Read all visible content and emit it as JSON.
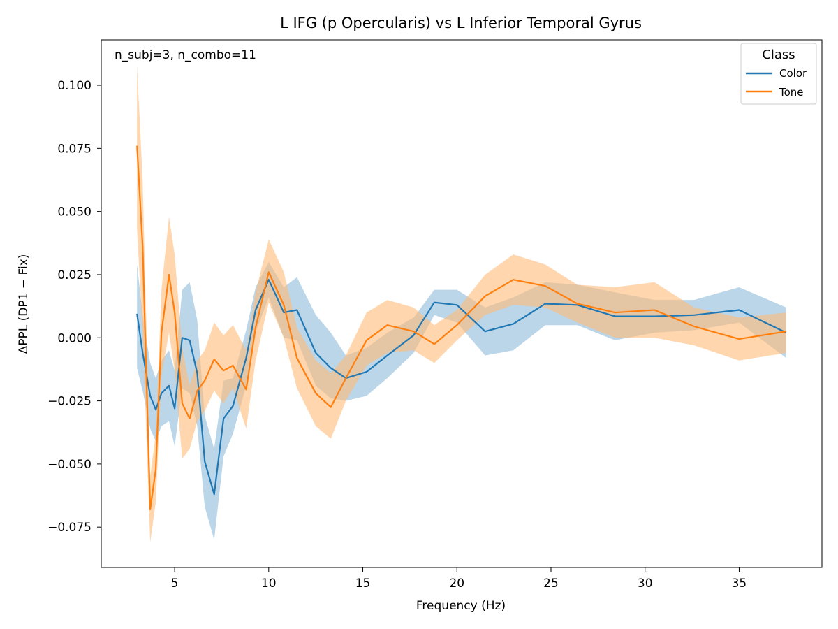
{
  "chart_data": {
    "type": "line",
    "title": "L IFG (p Opercularis) vs L Inferior Temporal Gyrus",
    "xlabel": "Frequency (Hz)",
    "ylabel": "ΔPPL (DP1 − Fix)",
    "xlim": [
      1.1,
      39.4
    ],
    "ylim": [
      -0.091,
      0.118
    ],
    "xticks": [
      5,
      10,
      15,
      20,
      25,
      30,
      35
    ],
    "xtick_labels": [
      "5",
      "10",
      "15",
      "20",
      "25",
      "30",
      "35"
    ],
    "yticks": [
      -0.075,
      -0.05,
      -0.025,
      0.0,
      0.025,
      0.05,
      0.075,
      0.1
    ],
    "ytick_labels": [
      "−0.075",
      "−0.050",
      "−0.025",
      "0.000",
      "0.025",
      "0.050",
      "0.075",
      "0.100"
    ],
    "grid": false,
    "annotation": "n_subj=3, n_combo=11",
    "legend": {
      "title": "Class",
      "position": "top-right"
    },
    "series": [
      {
        "name": "Color",
        "color": "#1f77b4",
        "fill": "#1f77b4",
        "fill_opacity": 0.3,
        "x": [
          3.0,
          3.3,
          3.7,
          4.0,
          4.3,
          4.7,
          5.0,
          5.4,
          5.8,
          6.2,
          6.6,
          7.1,
          7.6,
          8.1,
          8.8,
          9.3,
          10.0,
          10.8,
          11.5,
          12.5,
          13.3,
          14.1,
          15.2,
          16.3,
          17.7,
          18.8,
          20.0,
          21.5,
          23.0,
          24.7,
          26.4,
          28.4,
          30.5,
          32.6,
          35.0,
          37.5
        ],
        "y": [
          0.0095,
          -0.006,
          -0.023,
          -0.0285,
          -0.022,
          -0.019,
          -0.028,
          0.0,
          -0.001,
          -0.014,
          -0.049,
          -0.062,
          -0.032,
          -0.027,
          -0.008,
          0.011,
          0.023,
          0.01,
          0.011,
          -0.006,
          -0.012,
          -0.016,
          -0.0135,
          -0.007,
          0.001,
          0.014,
          0.013,
          0.0025,
          0.0055,
          0.0135,
          0.013,
          0.0085,
          0.0085,
          0.009,
          0.011,
          0.002
        ],
        "lower": [
          -0.012,
          -0.021,
          -0.036,
          -0.041,
          -0.035,
          -0.033,
          -0.043,
          -0.02,
          -0.022,
          -0.035,
          -0.067,
          -0.08,
          -0.047,
          -0.038,
          -0.019,
          0.002,
          0.016,
          0.0,
          -0.001,
          -0.019,
          -0.024,
          -0.025,
          -0.023,
          -0.016,
          -0.006,
          0.009,
          0.006,
          -0.007,
          -0.005,
          0.005,
          0.005,
          -0.001,
          0.002,
          0.003,
          0.006,
          -0.008
        ],
        "upper": [
          0.029,
          0.009,
          -0.01,
          -0.016,
          -0.009,
          -0.005,
          -0.013,
          0.019,
          0.022,
          0.007,
          -0.031,
          -0.044,
          -0.017,
          -0.016,
          0.003,
          0.02,
          0.03,
          0.02,
          0.024,
          0.009,
          0.002,
          -0.007,
          -0.004,
          0.002,
          0.008,
          0.019,
          0.019,
          0.012,
          0.016,
          0.022,
          0.021,
          0.018,
          0.015,
          0.015,
          0.02,
          0.012
        ]
      },
      {
        "name": "Tone",
        "color": "#ff7f0e",
        "fill": "#ffbb78",
        "fill_opacity": 0.6,
        "x": [
          3.0,
          3.3,
          3.7,
          4.0,
          4.3,
          4.7,
          5.0,
          5.4,
          5.8,
          6.2,
          6.6,
          7.1,
          7.6,
          8.1,
          8.8,
          9.3,
          10.0,
          10.8,
          11.5,
          12.5,
          13.3,
          14.1,
          15.2,
          16.3,
          17.7,
          18.8,
          20.0,
          21.5,
          23.0,
          24.7,
          26.4,
          28.4,
          30.5,
          32.6,
          35.0,
          37.5
        ],
        "y": [
          0.076,
          0.036,
          -0.068,
          -0.052,
          0.002,
          0.025,
          0.01,
          -0.026,
          -0.032,
          -0.021,
          -0.017,
          -0.0085,
          -0.013,
          -0.011,
          -0.0205,
          0.004,
          0.026,
          0.013,
          -0.008,
          -0.022,
          -0.0275,
          -0.016,
          -0.001,
          0.005,
          0.0025,
          -0.0025,
          0.005,
          0.0165,
          0.023,
          0.0205,
          0.0135,
          0.01,
          0.011,
          0.0045,
          -0.0005,
          0.0025
        ],
        "lower": [
          0.043,
          0.002,
          -0.081,
          -0.065,
          -0.015,
          0.002,
          -0.013,
          -0.048,
          -0.044,
          -0.033,
          -0.029,
          -0.021,
          -0.026,
          -0.02,
          -0.036,
          -0.009,
          0.014,
          0.0,
          -0.02,
          -0.035,
          -0.04,
          -0.025,
          -0.011,
          -0.006,
          -0.005,
          -0.01,
          -0.001,
          0.009,
          0.013,
          0.012,
          0.006,
          0.0,
          0.0,
          -0.003,
          -0.009,
          -0.006
        ],
        "upper": [
          0.108,
          0.062,
          -0.055,
          -0.038,
          0.019,
          0.048,
          0.033,
          -0.004,
          -0.019,
          -0.009,
          -0.005,
          0.006,
          0.001,
          0.005,
          -0.005,
          0.018,
          0.039,
          0.026,
          0.004,
          -0.009,
          -0.014,
          -0.007,
          0.01,
          0.015,
          0.012,
          0.005,
          0.011,
          0.025,
          0.033,
          0.029,
          0.021,
          0.02,
          0.022,
          0.012,
          0.008,
          0.01
        ]
      }
    ]
  }
}
